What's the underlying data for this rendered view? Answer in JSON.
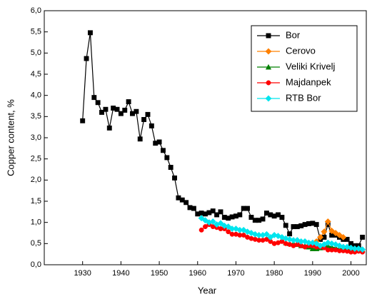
{
  "chart_data": {
    "type": "line",
    "x_label": "Year",
    "y_label": "Copper content, %",
    "xlim": [
      1920,
      2004
    ],
    "xticks": [
      1930,
      1940,
      1950,
      1960,
      1970,
      1980,
      1990,
      2000
    ],
    "ylim": [
      0,
      6
    ],
    "yticks": [
      {
        "value": 0,
        "label": "0,0"
      },
      {
        "value": 0.5,
        "label": "0,5"
      },
      {
        "value": 1,
        "label": "1,0"
      },
      {
        "value": 1.5,
        "label": "1,5"
      },
      {
        "value": 2,
        "label": "2,0"
      },
      {
        "value": 2.5,
        "label": "2,5"
      },
      {
        "value": 3,
        "label": "3,0"
      },
      {
        "value": 3.5,
        "label": "3,5"
      },
      {
        "value": 4,
        "label": "4,0"
      },
      {
        "value": 4.5,
        "label": "4,5"
      },
      {
        "value": 5,
        "label": "5,0"
      },
      {
        "value": 5.5,
        "label": "5,5"
      },
      {
        "value": 6,
        "label": "6,0"
      }
    ],
    "legend": "top-right",
    "series": [
      {
        "name": "Bor",
        "color": "#000000",
        "marker": "square",
        "x": [
          1930,
          1931,
          1932,
          1933,
          1934,
          1935,
          1936,
          1937,
          1938,
          1939,
          1940,
          1941,
          1942,
          1943,
          1944,
          1945,
          1946,
          1947,
          1948,
          1949,
          1950,
          1951,
          1952,
          1953,
          1954,
          1955,
          1956,
          1957,
          1958,
          1959,
          1960,
          1961,
          1962,
          1963,
          1964,
          1965,
          1966,
          1967,
          1968,
          1969,
          1970,
          1971,
          1972,
          1973,
          1974,
          1975,
          1976,
          1977,
          1978,
          1979,
          1980,
          1981,
          1982,
          1983,
          1984,
          1985,
          1986,
          1987,
          1988,
          1989,
          1990,
          1991,
          1992,
          1993,
          1994,
          1995,
          1996,
          1997,
          1998,
          1999,
          2000,
          2001,
          2002,
          2003
        ],
        "values": [
          3.4,
          4.87,
          5.48,
          3.95,
          3.83,
          3.6,
          3.67,
          3.23,
          3.7,
          3.67,
          3.57,
          3.65,
          3.85,
          3.57,
          3.62,
          2.97,
          3.43,
          3.55,
          3.28,
          2.87,
          2.9,
          2.7,
          2.53,
          2.3,
          2.05,
          1.58,
          1.53,
          1.47,
          1.35,
          1.33,
          1.2,
          1.22,
          1.2,
          1.23,
          1.27,
          1.18,
          1.25,
          1.12,
          1.1,
          1.13,
          1.15,
          1.18,
          1.33,
          1.33,
          1.12,
          1.05,
          1.05,
          1.08,
          1.22,
          1.18,
          1.15,
          1.18,
          1.12,
          0.93,
          0.73,
          0.9,
          0.9,
          0.92,
          0.95,
          0.97,
          0.98,
          0.95,
          0.6,
          0.65,
          0.95,
          0.7,
          0.7,
          0.65,
          0.6,
          0.6,
          0.5,
          0.45,
          0.45,
          0.65
        ]
      },
      {
        "name": "Cerovo",
        "color": "#ff8000",
        "marker": "diamond",
        "x": [
          1991,
          1992,
          1993,
          1994,
          1995,
          1996,
          1997,
          1998
        ],
        "values": [
          0.55,
          0.65,
          0.78,
          1.02,
          0.8,
          0.75,
          0.7,
          0.65
        ]
      },
      {
        "name": "Veliki Krivelj",
        "color": "#008000",
        "marker": "triangle",
        "x": [
          1983,
          1984,
          1985,
          1986,
          1987,
          1988,
          1989,
          1990,
          1991,
          1992,
          1993,
          1994,
          1995,
          1996,
          1997,
          1998,
          1999,
          2000,
          2001,
          2002,
          2003
        ],
        "values": [
          0.52,
          0.5,
          0.5,
          0.48,
          0.45,
          0.45,
          0.42,
          0.38,
          0.38,
          0.4,
          0.42,
          0.45,
          0.42,
          0.4,
          0.38,
          0.38,
          0.37,
          0.35,
          0.35,
          0.35,
          0.35
        ]
      },
      {
        "name": "Majdanpek",
        "color": "#ff0000",
        "marker": "circle",
        "x": [
          1961,
          1962,
          1963,
          1964,
          1965,
          1966,
          1967,
          1968,
          1969,
          1970,
          1971,
          1972,
          1973,
          1974,
          1975,
          1976,
          1977,
          1978,
          1979,
          1980,
          1981,
          1982,
          1983,
          1984,
          1985,
          1986,
          1987,
          1988,
          1989,
          1990,
          1991,
          1992,
          1993,
          1994,
          1995,
          1996,
          1997,
          1998,
          1999,
          2000,
          2001,
          2002,
          2003
        ],
        "values": [
          0.82,
          0.9,
          0.95,
          0.9,
          0.88,
          0.85,
          0.85,
          0.78,
          0.72,
          0.72,
          0.7,
          0.7,
          0.65,
          0.62,
          0.6,
          0.58,
          0.58,
          0.6,
          0.55,
          0.5,
          0.52,
          0.55,
          0.5,
          0.48,
          0.45,
          0.48,
          0.45,
          0.42,
          0.45,
          0.45,
          0.42,
          0.42,
          0.4,
          0.35,
          0.35,
          0.35,
          0.33,
          0.33,
          0.32,
          0.3,
          0.3,
          0.32,
          0.3
        ]
      },
      {
        "name": "RTB Bor",
        "color": "#00e5ee",
        "marker": "diamond",
        "x": [
          1961,
          1962,
          1963,
          1964,
          1965,
          1966,
          1967,
          1968,
          1969,
          1970,
          1971,
          1972,
          1973,
          1974,
          1975,
          1976,
          1977,
          1978,
          1979,
          1980,
          1981,
          1982,
          1983,
          1984,
          1985,
          1986,
          1987,
          1988,
          1989,
          1990,
          1991,
          1992,
          1993,
          1994,
          1995,
          1996,
          1997,
          1998,
          1999,
          2000,
          2001,
          2002,
          2003
        ],
        "values": [
          1.1,
          1.05,
          1.0,
          1.02,
          0.95,
          0.98,
          0.92,
          0.9,
          0.85,
          0.85,
          0.82,
          0.82,
          0.78,
          0.75,
          0.72,
          0.7,
          0.7,
          0.72,
          0.65,
          0.7,
          0.68,
          0.65,
          0.62,
          0.6,
          0.58,
          0.58,
          0.55,
          0.55,
          0.52,
          0.52,
          0.5,
          0.45,
          0.48,
          0.52,
          0.5,
          0.48,
          0.45,
          0.42,
          0.42,
          0.4,
          0.38,
          0.38,
          0.36
        ]
      }
    ]
  }
}
